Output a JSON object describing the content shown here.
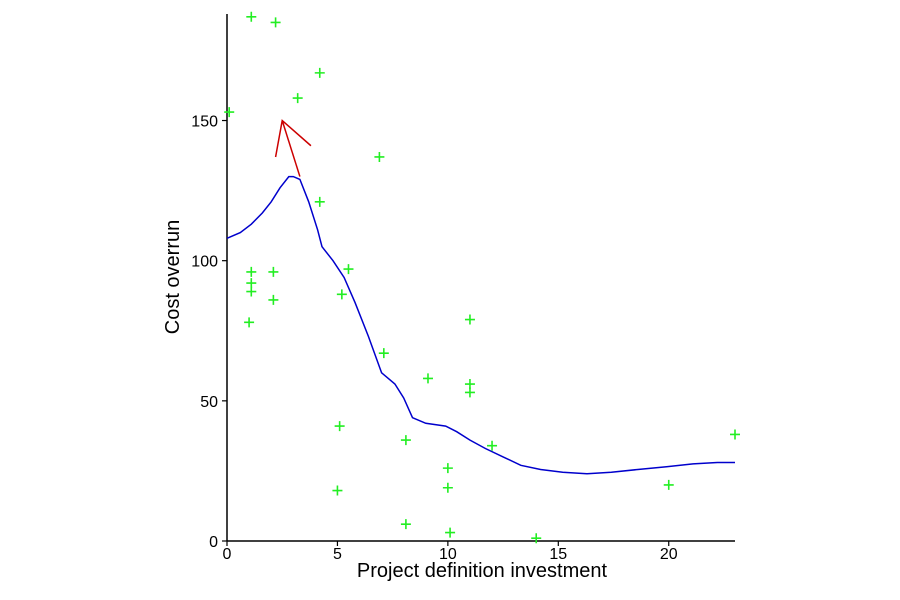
{
  "chart_data": {
    "type": "scatter",
    "title": "",
    "xlabel": "Project definition investment",
    "ylabel": "Cost overrun",
    "xlim": [
      0,
      23
    ],
    "ylim": [
      0,
      188
    ],
    "x_ticks": [
      0,
      5,
      10,
      15,
      20
    ],
    "y_ticks": [
      0,
      50,
      100,
      150
    ],
    "grid": false,
    "legend": "none",
    "points": {
      "marker": "plus",
      "color": "#22ee22",
      "x": [
        0.1,
        1.1,
        2.2,
        3.2,
        4.2,
        6.9,
        4.2,
        1.1,
        1.1,
        1.1,
        2.1,
        2.1,
        1.0,
        5.5,
        5.2,
        7.1,
        11.0,
        9.1,
        11.0,
        11.0,
        5.1,
        8.1,
        12.0,
        10.0,
        10.0,
        5.0,
        8.1,
        10.1,
        14.0,
        20.0,
        23.0
      ],
      "y": [
        153,
        187,
        185,
        158,
        167,
        137,
        121,
        96,
        92,
        89,
        96,
        86,
        78,
        97,
        88,
        67,
        79,
        58,
        56,
        53,
        41,
        36,
        34,
        26,
        19,
        18,
        6,
        3,
        1,
        20,
        38
      ]
    },
    "series": [
      {
        "type": "line",
        "color": "#0000cc",
        "x": [
          0,
          0.6,
          1.1,
          1.6,
          2.0,
          2.4,
          2.8,
          3.0,
          3.3,
          3.7,
          4.1,
          4.3,
          4.8,
          5.3,
          5.8,
          6.4,
          7.0,
          7.6,
          8.0,
          8.4,
          9.0,
          9.9,
          10.4,
          11.0,
          11.7,
          12.5,
          13.3,
          14.2,
          15.2,
          16.3,
          17.4,
          18.6,
          19.9,
          21.1,
          22.2,
          23.0
        ],
        "y": [
          108,
          110,
          113,
          117,
          121,
          126,
          130,
          130,
          129,
          121,
          111,
          105,
          100,
          94,
          85,
          73,
          60,
          56,
          51,
          44,
          42,
          41,
          39,
          36,
          33,
          30,
          27,
          25.5,
          24.5,
          24,
          24.5,
          25.5,
          26.5,
          27.5,
          28,
          28
        ]
      }
    ],
    "annotation": {
      "type": "arrow",
      "color": "#cc0000",
      "from": [
        3.3,
        130
      ],
      "to": [
        2.5,
        150
      ],
      "head": [
        [
          2.2,
          137
        ],
        [
          3.8,
          141
        ]
      ]
    }
  }
}
